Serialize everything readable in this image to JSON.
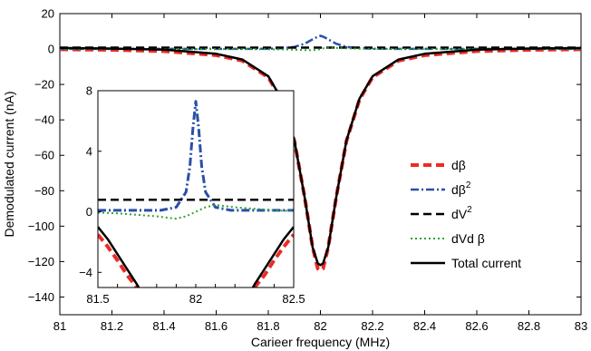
{
  "chart_data": [
    {
      "type": "line",
      "title": "",
      "xlabel": "Carieer frequency (MHz)",
      "ylabel": "Demodulated current (nA)",
      "xlim": [
        81,
        83
      ],
      "ylim": [
        -150,
        20
      ],
      "x_ticks": [
        81,
        81.2,
        81.4,
        81.6,
        81.8,
        82,
        82.2,
        82.4,
        82.6,
        82.8,
        83
      ],
      "x_tick_labels": [
        "81",
        "81.2",
        "81.4",
        "81.6",
        "81.8",
        "82",
        "82.2",
        "82.4",
        "82.6",
        "82.8",
        "83"
      ],
      "y_ticks": [
        20,
        0,
        -20,
        -40,
        -60,
        -80,
        -100,
        -120,
        -140
      ],
      "y_tick_labels": [
        "20",
        "0",
        "−20",
        "−40",
        "−60",
        "−80",
        "−100",
        "−120",
        "−140"
      ],
      "grid": false,
      "legend_position": "right",
      "x": [
        81.0,
        81.2,
        81.4,
        81.6,
        81.7,
        81.8,
        81.85,
        81.9,
        81.94,
        81.97,
        81.99,
        82.0,
        82.01,
        82.03,
        82.06,
        82.1,
        82.15,
        82.2,
        82.3,
        82.4,
        82.6,
        82.8,
        83.0
      ],
      "series": [
        {
          "name": "dβ",
          "values": [
            -0.2,
            -0.5,
            -1.2,
            -3.5,
            -6.6,
            -16.0,
            -28.5,
            -52.0,
            -84.0,
            -112.0,
            -124.0,
            -125.0,
            -124.0,
            -112.0,
            -84.0,
            -52.0,
            -28.5,
            -16.0,
            -6.6,
            -3.5,
            -1.2,
            -0.5,
            -0.2
          ],
          "color": "#ee2a24",
          "style": "dashed",
          "width": 4
        },
        {
          "name": "dβ",
          "sup": "2",
          "values": [
            0.1,
            0.1,
            0.1,
            0.1,
            0.1,
            0.2,
            0.5,
            1.2,
            3.0,
            5.5,
            7.0,
            7.5,
            7.0,
            5.5,
            3.0,
            1.2,
            0.5,
            0.2,
            0.1,
            0.1,
            0.1,
            0.1,
            0.1
          ],
          "color": "#2a4fa8",
          "style": "dashdot",
          "width": 2.5
        },
        {
          "name": "dV",
          "sup": "2",
          "values": [
            0.8,
            0.8,
            0.8,
            0.8,
            0.8,
            0.8,
            0.8,
            0.8,
            0.8,
            0.8,
            0.8,
            0.8,
            0.8,
            0.8,
            0.8,
            0.8,
            0.8,
            0.8,
            0.8,
            0.8,
            0.8,
            0.8,
            0.8
          ],
          "color": "#000000",
          "style": "dashed",
          "width": 2.5
        },
        {
          "name": "dVd β",
          "values": [
            0.0,
            0.0,
            0.0,
            0.0,
            0.0,
            -0.1,
            -0.2,
            -0.4,
            -0.6,
            -0.7,
            -0.4,
            0.0,
            0.4,
            0.7,
            0.6,
            0.4,
            0.2,
            0.1,
            0.0,
            0.0,
            0.0,
            0.0,
            0.0
          ],
          "color": "#2ea32e",
          "style": "dotted",
          "width": 2
        },
        {
          "name": "Total current",
          "values": [
            0.6,
            0.3,
            -0.4,
            -2.7,
            -5.9,
            -15.4,
            -28.0,
            -51.7,
            -84.0,
            -112.0,
            -121.0,
            -122.0,
            -121.0,
            -112.0,
            -84.0,
            -51.7,
            -28.0,
            -15.4,
            -5.9,
            -2.7,
            -0.4,
            0.3,
            0.6
          ],
          "color": "#000000",
          "style": "solid",
          "width": 2.5
        }
      ]
    },
    {
      "type": "line",
      "title": "",
      "xlabel": "",
      "ylabel": "",
      "xlim": [
        81.5,
        82.5
      ],
      "ylim": [
        -5,
        8
      ],
      "x_ticks": [
        81.5,
        81.6,
        81.7,
        81.8,
        81.9,
        82,
        82.1,
        82.2,
        82.3,
        82.4,
        82.5
      ],
      "x_tick_labels": [
        "81.5",
        "",
        "",
        "",
        "",
        "82",
        "",
        "",
        "",
        "",
        "82.5"
      ],
      "y_ticks": [
        8,
        4,
        0,
        -4
      ],
      "y_tick_labels": [
        "8",
        "4",
        "0",
        "−4"
      ],
      "grid": false,
      "series": [
        {
          "name": "dβ",
          "x": [
            81.5,
            81.55,
            81.6,
            81.65,
            81.7,
            81.73,
            82.27,
            82.3,
            82.35,
            82.4,
            82.45,
            82.5
          ],
          "values": [
            -1.5,
            -2.3,
            -3.2,
            -4.2,
            -5.0,
            -5.5,
            -5.5,
            -5.0,
            -4.2,
            -3.2,
            -2.3,
            -1.5
          ],
          "color": "#ee2a24",
          "style": "dashed",
          "width": 4
        },
        {
          "name": "dβ",
          "sup": "2",
          "x": [
            81.5,
            81.82,
            81.9,
            81.95,
            81.97,
            81.985,
            82.0,
            82.015,
            82.03,
            82.05,
            82.1,
            82.18,
            82.5
          ],
          "values": [
            0.1,
            0.1,
            0.3,
            1.3,
            3.0,
            5.5,
            7.3,
            5.5,
            3.0,
            1.3,
            0.3,
            0.1,
            0.1
          ],
          "color": "#2a4fa8",
          "style": "dashdot",
          "width": 3
        },
        {
          "name": "dV",
          "sup": "2",
          "x": [
            81.5,
            82.5
          ],
          "values": [
            0.8,
            0.8
          ],
          "color": "#000000",
          "style": "dashed",
          "width": 2.5
        },
        {
          "name": "dVd β",
          "x": [
            81.5,
            81.6,
            81.7,
            81.8,
            81.85,
            81.9,
            81.95,
            82.0,
            82.05,
            82.1,
            82.15,
            82.2,
            82.3,
            82.4,
            82.5
          ],
          "values": [
            -0.05,
            -0.1,
            -0.2,
            -0.3,
            -0.38,
            -0.45,
            -0.3,
            0.0,
            0.3,
            0.45,
            0.38,
            0.3,
            0.2,
            0.1,
            0.05
          ],
          "color": "#2ea32e",
          "style": "dotted",
          "width": 2
        },
        {
          "name": "Total current",
          "x": [
            81.5,
            81.55,
            81.6,
            81.65,
            81.7,
            81.73,
            82.27,
            82.3,
            82.35,
            82.4,
            82.45,
            82.5
          ],
          "values": [
            -1.0,
            -1.8,
            -2.8,
            -3.8,
            -4.8,
            -5.5,
            -5.5,
            -4.8,
            -3.8,
            -2.8,
            -1.8,
            -1.0
          ],
          "color": "#000000",
          "style": "solid",
          "width": 2.5
        }
      ]
    }
  ]
}
